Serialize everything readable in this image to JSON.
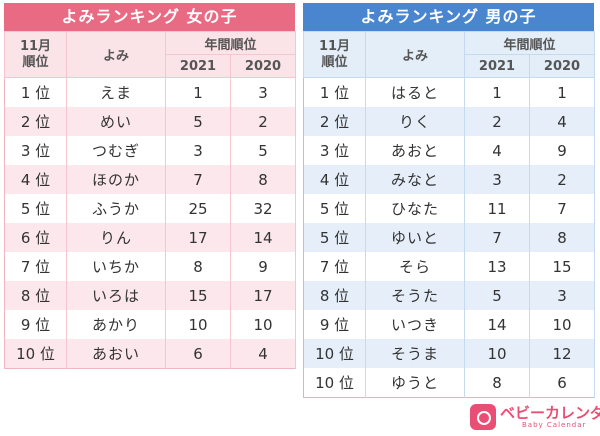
{
  "girls": {
    "title": "よみランキング 女の子",
    "header": {
      "rank": "11月\n順位",
      "reading": "よみ",
      "group": "年間順位",
      "y2021": "2021",
      "y2020": "2020"
    },
    "rows": [
      {
        "rank": "1 位",
        "name": "えま",
        "y2021": "1",
        "y2020": "3"
      },
      {
        "rank": "2 位",
        "name": "めい",
        "y2021": "5",
        "y2020": "2"
      },
      {
        "rank": "3 位",
        "name": "つむぎ",
        "y2021": "3",
        "y2020": "5"
      },
      {
        "rank": "4 位",
        "name": "ほのか",
        "y2021": "7",
        "y2020": "8"
      },
      {
        "rank": "5 位",
        "name": "ふうか",
        "y2021": "25",
        "y2020": "32"
      },
      {
        "rank": "6 位",
        "name": "りん",
        "y2021": "17",
        "y2020": "14"
      },
      {
        "rank": "7 位",
        "name": "いちか",
        "y2021": "8",
        "y2020": "9"
      },
      {
        "rank": "8 位",
        "name": "いろは",
        "y2021": "15",
        "y2020": "17"
      },
      {
        "rank": "9 位",
        "name": "あかり",
        "y2021": "10",
        "y2020": "10"
      },
      {
        "rank": "10 位",
        "name": "あおい",
        "y2021": "6",
        "y2020": "4"
      }
    ]
  },
  "boys": {
    "title": "よみランキング 男の子",
    "header": {
      "rank": "11月\n順位",
      "reading": "よみ",
      "group": "年間順位",
      "y2021": "2021",
      "y2020": "2020"
    },
    "rows": [
      {
        "rank": "1 位",
        "name": "はると",
        "y2021": "1",
        "y2020": "1"
      },
      {
        "rank": "2 位",
        "name": "りく",
        "y2021": "2",
        "y2020": "4"
      },
      {
        "rank": "3 位",
        "name": "あおと",
        "y2021": "4",
        "y2020": "9"
      },
      {
        "rank": "4 位",
        "name": "みなと",
        "y2021": "3",
        "y2020": "2"
      },
      {
        "rank": "5 位",
        "name": "ひなた",
        "y2021": "11",
        "y2020": "7"
      },
      {
        "rank": "5 位",
        "name": "ゆいと",
        "y2021": "7",
        "y2020": "8"
      },
      {
        "rank": "7 位",
        "name": "そら",
        "y2021": "13",
        "y2020": "15"
      },
      {
        "rank": "8 位",
        "name": "そうた",
        "y2021": "5",
        "y2020": "3"
      },
      {
        "rank": "9 位",
        "name": "いつき",
        "y2021": "14",
        "y2020": "10"
      },
      {
        "rank": "10 位",
        "name": "そうま",
        "y2021": "10",
        "y2020": "12"
      },
      {
        "rank": "10 位",
        "name": "ゆうと",
        "y2021": "8",
        "y2020": "6"
      }
    ]
  },
  "logo": {
    "text": "ベビーカレンダー",
    "sub": "Baby Calendar"
  },
  "colors": {
    "girls_accent": "#e96a83",
    "boys_accent": "#4a86cf",
    "logo": "#e94f75"
  }
}
